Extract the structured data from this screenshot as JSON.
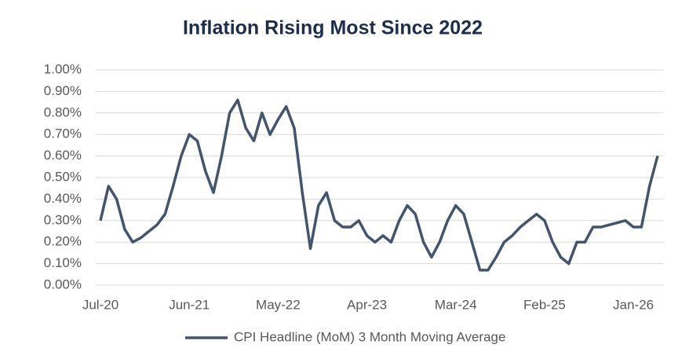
{
  "chart_data": {
    "type": "line",
    "title": "Inflation Rising Most Since 2022",
    "categories": [
      "Jul-20",
      null,
      null,
      null,
      null,
      null,
      null,
      null,
      null,
      null,
      null,
      "Jun-21",
      null,
      null,
      null,
      null,
      null,
      null,
      null,
      null,
      null,
      null,
      "May-22",
      null,
      null,
      null,
      null,
      null,
      null,
      null,
      null,
      null,
      null,
      "Apr-23",
      null,
      null,
      null,
      null,
      null,
      null,
      null,
      null,
      null,
      null,
      "Mar-24",
      null,
      null,
      null,
      null,
      null,
      null,
      null,
      null,
      null,
      null,
      "Feb-25",
      null,
      null,
      null,
      null,
      null,
      null,
      null,
      null,
      null,
      null,
      "Jan-26",
      null,
      null,
      null
    ],
    "series": [
      {
        "name": "CPI Headline (MoM) 3 Month Moving Average",
        "color": "#44546a",
        "values": [
          0.3,
          0.46,
          0.4,
          0.26,
          0.2,
          0.22,
          0.25,
          0.28,
          0.33,
          0.46,
          0.6,
          0.7,
          0.67,
          0.53,
          0.43,
          0.6,
          0.8,
          0.86,
          0.73,
          0.67,
          0.8,
          0.7,
          0.77,
          0.83,
          0.73,
          0.43,
          0.17,
          0.37,
          0.43,
          0.3,
          0.27,
          0.27,
          0.3,
          0.23,
          0.2,
          0.23,
          0.2,
          0.3,
          0.37,
          0.33,
          0.2,
          0.13,
          0.2,
          0.3,
          0.37,
          0.33,
          0.2,
          0.07,
          0.07,
          0.13,
          0.2,
          0.23,
          0.27,
          0.3,
          0.33,
          0.3,
          0.2,
          0.13,
          0.1,
          0.2,
          0.2,
          0.27,
          0.27,
          0.28,
          0.29,
          0.3,
          0.27,
          0.27,
          0.46,
          0.6
        ]
      }
    ],
    "ylim": [
      0,
      1
    ],
    "yticks": [
      {
        "value": 0,
        "label": "0.00%"
      },
      {
        "value": 0.1,
        "label": "0.10%"
      },
      {
        "value": 0.2,
        "label": "0.20%"
      },
      {
        "value": 0.3,
        "label": "0.30%"
      },
      {
        "value": 0.4,
        "label": "0.40%"
      },
      {
        "value": 0.5,
        "label": "0.50%"
      },
      {
        "value": 0.6,
        "label": "0.60%"
      },
      {
        "value": 0.7,
        "label": "0.70%"
      },
      {
        "value": 0.8,
        "label": "0.80%"
      },
      {
        "value": 0.9,
        "label": "0.90%"
      },
      {
        "value": 1,
        "label": "1.00%"
      }
    ],
    "grid": true,
    "legend": "bottom"
  }
}
